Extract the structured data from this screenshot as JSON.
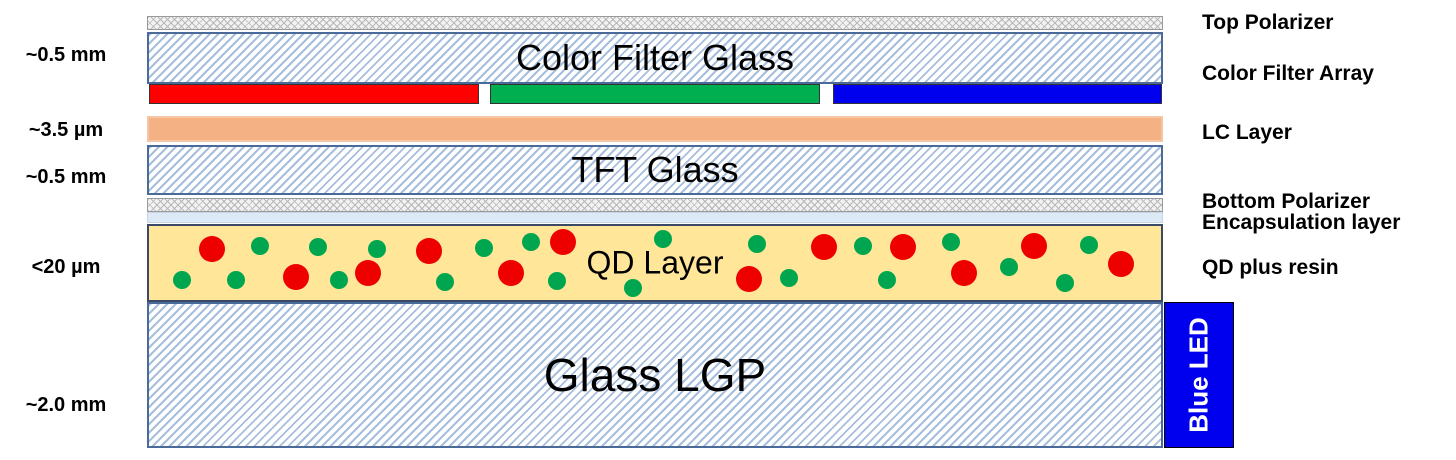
{
  "layers": {
    "color_filter_glass": "Color Filter Glass",
    "tft_glass": "TFT Glass",
    "qd_layer": "QD Layer",
    "glass_lgp": "Glass LGP",
    "blue_led": "Blue LED"
  },
  "thickness_labels": {
    "color_filter_glass": "~0.5 mm",
    "lc_layer": "~3.5 µm",
    "tft_glass": "~0.5 mm",
    "qd_layer": "<20 µm",
    "glass_lgp": "~2.0 mm"
  },
  "right_labels": {
    "top_polarizer": "Top Polarizer",
    "color_filter_array": "Color Filter Array",
    "lc_layer": "LC Layer",
    "bottom_polarizer": "Bottom Polarizer",
    "encapsulation_layer": "Encapsulation layer",
    "qd_plus_resin": "QD plus resin"
  },
  "colors": {
    "red_filter": "#ff0000",
    "green_filter": "#00b050",
    "blue_filter": "#0000ee",
    "lc_layer": "#f4b183",
    "qd_resin": "#ffe699",
    "red_qd": "#ee0000",
    "green_qd": "#00a64f",
    "led": "#0000ee"
  }
}
